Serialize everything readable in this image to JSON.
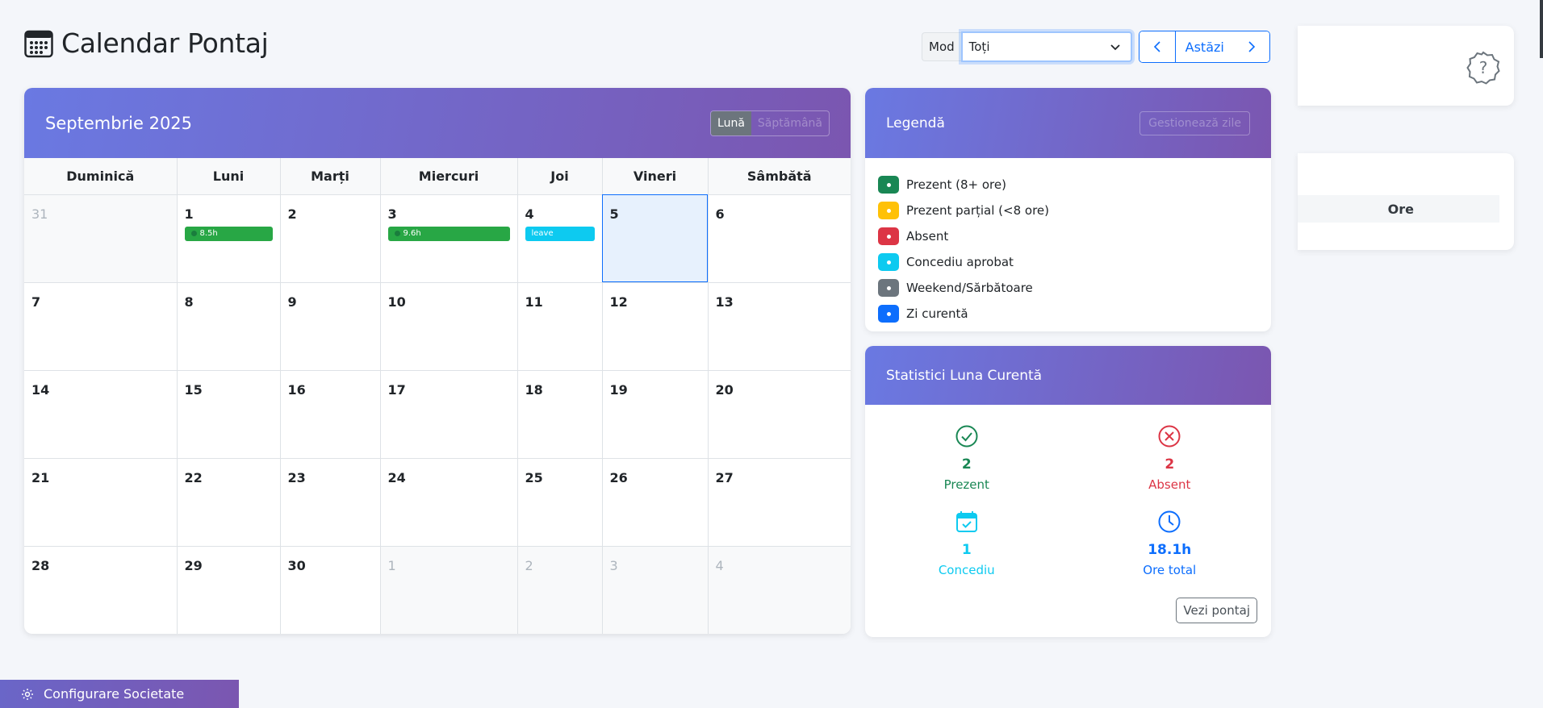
{
  "header": {
    "title": "Calendar Pontaj",
    "icon": "calendar-icon"
  },
  "controls": {
    "mode_label": "Mod",
    "mode_value": "Toți",
    "today_label": "Astăzi"
  },
  "calendar": {
    "month_title": "Septembrie 2025",
    "view_month": "Lună",
    "view_week": "Săptămână",
    "weekdays": [
      "Duminică",
      "Luni",
      "Marți",
      "Miercuri",
      "Joi",
      "Vineri",
      "Sâmbătă"
    ],
    "weeks": [
      [
        {
          "d": "31",
          "other": true
        },
        {
          "d": "1",
          "event": {
            "label": "8.5h",
            "type": "present"
          }
        },
        {
          "d": "2"
        },
        {
          "d": "3",
          "event": {
            "label": "9.6h",
            "type": "present"
          }
        },
        {
          "d": "4",
          "event": {
            "label": "leave",
            "type": "leave"
          }
        },
        {
          "d": "5",
          "today": true
        },
        {
          "d": "6"
        }
      ],
      [
        {
          "d": "7"
        },
        {
          "d": "8"
        },
        {
          "d": "9"
        },
        {
          "d": "10"
        },
        {
          "d": "11"
        },
        {
          "d": "12"
        },
        {
          "d": "13"
        }
      ],
      [
        {
          "d": "14"
        },
        {
          "d": "15"
        },
        {
          "d": "16"
        },
        {
          "d": "17"
        },
        {
          "d": "18"
        },
        {
          "d": "19"
        },
        {
          "d": "20"
        }
      ],
      [
        {
          "d": "21"
        },
        {
          "d": "22"
        },
        {
          "d": "23"
        },
        {
          "d": "24"
        },
        {
          "d": "25"
        },
        {
          "d": "26"
        },
        {
          "d": "27"
        }
      ],
      [
        {
          "d": "28"
        },
        {
          "d": "29"
        },
        {
          "d": "30"
        },
        {
          "d": "1",
          "other": true
        },
        {
          "d": "2",
          "other": true
        },
        {
          "d": "3",
          "other": true
        },
        {
          "d": "4",
          "other": true
        }
      ]
    ]
  },
  "legend": {
    "title": "Legendă",
    "manage_label": "Gestionează zile",
    "items": [
      {
        "label": "Prezent (8+ ore)",
        "color": "#198754"
      },
      {
        "label": "Prezent parțial (<8 ore)",
        "color": "#ffc107"
      },
      {
        "label": "Absent",
        "color": "#dc3545"
      },
      {
        "label": "Concediu aprobat",
        "color": "#0dcaf0"
      },
      {
        "label": "Weekend/Sărbătoare",
        "color": "#6c757d"
      },
      {
        "label": "Zi curentă",
        "color": "#0d6efd"
      }
    ]
  },
  "stats": {
    "title": "Statistici Luna Curentă",
    "present": {
      "value": "2",
      "label": "Prezent",
      "color": "#198754"
    },
    "absent": {
      "value": "2",
      "label": "Absent",
      "color": "#dc3545"
    },
    "leave": {
      "value": "1",
      "label": "Concediu",
      "color": "#0dcaf0"
    },
    "hours": {
      "value": "18.1h",
      "label": "Ore total",
      "color": "#0d6efd"
    },
    "view_button": "Vezi pontaj"
  },
  "right_panel": {
    "column_header": "Ore"
  },
  "footer": {
    "config_label": "Configurare Societate"
  }
}
